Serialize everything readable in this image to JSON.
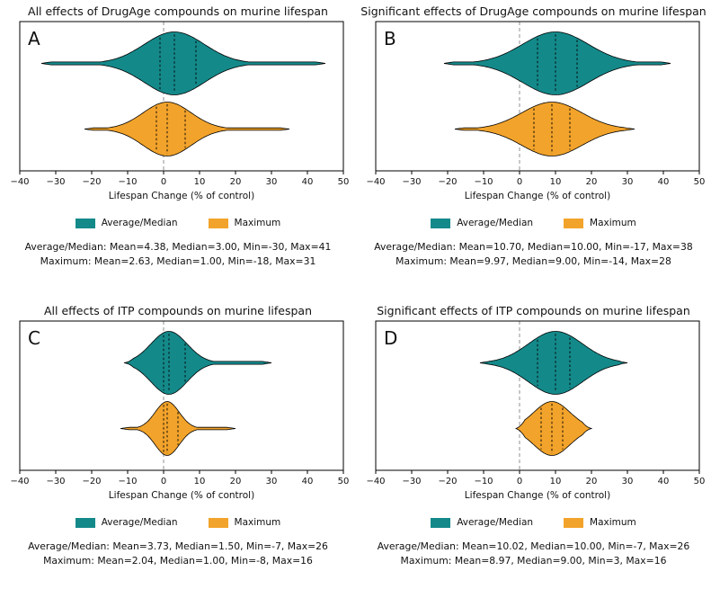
{
  "figure": {
    "background": "#ffffff",
    "colors": {
      "teal": "#14898a",
      "orange": "#f2a32b",
      "zero_line": "#909090",
      "outline": "#000000",
      "text": "#111111"
    },
    "axis": {
      "label": "Lifespan Change (% of control)",
      "min": -40,
      "max": 50,
      "ticks": [
        {
          "value": -40,
          "label": "−40"
        },
        {
          "value": -30,
          "label": "−30"
        },
        {
          "value": -20,
          "label": "−20"
        },
        {
          "value": -10,
          "label": "−10"
        },
        {
          "value": 0,
          "label": "0"
        },
        {
          "value": 10,
          "label": "10"
        },
        {
          "value": 20,
          "label": "20"
        },
        {
          "value": 30,
          "label": "30"
        },
        {
          "value": 40,
          "label": "40"
        },
        {
          "value": 50,
          "label": "50"
        }
      ]
    },
    "legend": [
      {
        "label": "Average/Median",
        "color": "#14898a"
      },
      {
        "label": "Maximum",
        "color": "#f2a32b"
      }
    ]
  },
  "chart_data": [
    {
      "type": "violin",
      "panel": "A",
      "title": "All effects of DrugAge compounds on murine lifespan",
      "xlabel": "Lifespan Change (% of control)",
      "xlim": [
        -40,
        50
      ],
      "series": [
        {
          "name": "Average/Median",
          "color": "#14898a",
          "mean": 4.38,
          "median": 3.0,
          "min": -30,
          "max": 41,
          "q1": -1,
          "q3": 9
        },
        {
          "name": "Maximum",
          "color": "#f2a32b",
          "mean": 2.63,
          "median": 1.0,
          "min": -18,
          "max": 31,
          "q1": -2,
          "q3": 6
        }
      ],
      "stats_lines": [
        "Average/Median: Mean=4.38, Median=3.00, Min=-30, Max=41",
        "Maximum: Mean=2.63, Median=1.00, Min=-18, Max=31"
      ]
    },
    {
      "type": "violin",
      "panel": "B",
      "title": "Significant effects of DrugAge compounds on murine lifespan",
      "xlabel": "Lifespan Change (% of control)",
      "xlim": [
        -40,
        50
      ],
      "series": [
        {
          "name": "Average/Median",
          "color": "#14898a",
          "mean": 10.7,
          "median": 10.0,
          "min": -17,
          "max": 38,
          "q1": 5,
          "q3": 16
        },
        {
          "name": "Maximum",
          "color": "#f2a32b",
          "mean": 9.97,
          "median": 9.0,
          "min": -14,
          "max": 28,
          "q1": 4,
          "q3": 14
        }
      ],
      "stats_lines": [
        "Average/Median: Mean=10.70, Median=10.00, Min=-17, Max=38",
        "Maximum: Mean=9.97, Median=9.00, Min=-14, Max=28"
      ]
    },
    {
      "type": "violin",
      "panel": "C",
      "title": "All effects of ITP compounds on murine lifespan",
      "xlabel": "Lifespan Change (% of control)",
      "xlim": [
        -40,
        50
      ],
      "series": [
        {
          "name": "Average/Median",
          "color": "#14898a",
          "mean": 3.73,
          "median": 1.5,
          "min": -7,
          "max": 26,
          "q1": 0,
          "q3": 6
        },
        {
          "name": "Maximum",
          "color": "#f2a32b",
          "mean": 2.04,
          "median": 1.0,
          "min": -8,
          "max": 16,
          "q1": 0,
          "q3": 4
        }
      ],
      "stats_lines": [
        "Average/Median: Mean=3.73, Median=1.50, Min=-7, Max=26",
        "Maximum: Mean=2.04, Median=1.00, Min=-8, Max=16"
      ]
    },
    {
      "type": "violin",
      "panel": "D",
      "title": "Significant effects of ITP compounds on murine lifespan",
      "xlabel": "Lifespan Change (% of control)",
      "xlim": [
        -40,
        50
      ],
      "series": [
        {
          "name": "Average/Median",
          "color": "#14898a",
          "mean": 10.02,
          "median": 10.0,
          "min": -7,
          "max": 26,
          "q1": 5,
          "q3": 14
        },
        {
          "name": "Maximum",
          "color": "#f2a32b",
          "mean": 8.97,
          "median": 9.0,
          "min": 3,
          "max": 16,
          "q1": 6,
          "q3": 12
        }
      ],
      "stats_lines": [
        "Average/Median: Mean=10.02, Median=10.00, Min=-7, Max=26",
        "Maximum: Mean=8.97, Median=9.00, Min=3, Max=16"
      ]
    }
  ]
}
